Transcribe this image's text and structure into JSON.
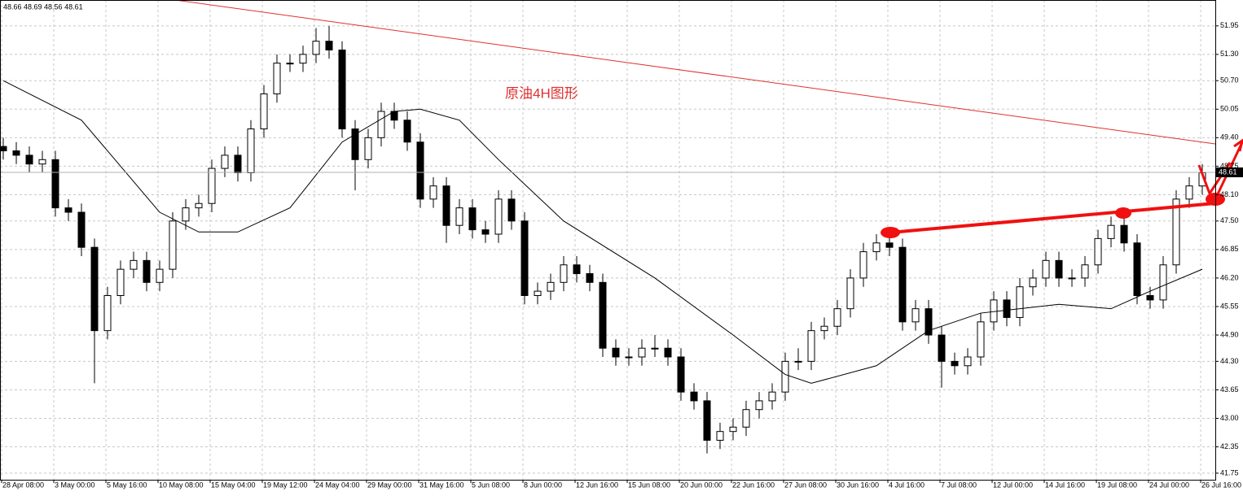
{
  "chart_data": {
    "type": "candlestick",
    "header": "48.66 48.69 48.56 48.61",
    "annotation": "原油4H图形",
    "current_price": 48.61,
    "ylim": [
      41.6,
      52.54
    ],
    "yticks": [
      41.75,
      42.35,
      {
        "value": 43,
        "label": "43.00"
      },
      43.65,
      {
        "value": 44.3,
        "label": "44.30"
      },
      {
        "value": 44.9,
        "label": "44.90"
      },
      45.55,
      {
        "value": 46.2,
        "label": "46.20"
      },
      46.85,
      {
        "value": 47.5,
        "label": "47.50"
      },
      {
        "value": 48.1,
        "label": "48.10"
      },
      48.75,
      {
        "value": 49.4,
        "label": "49.40"
      },
      50.05,
      {
        "value": 50.7,
        "label": "50.70"
      },
      {
        "value": 51.3,
        "label": "51.30"
      },
      51.95
    ],
    "grid": true,
    "categories": [
      "28 Apr 08:00",
      null,
      null,
      null,
      "3 May 00:00",
      null,
      null,
      null,
      "5 May 16:00",
      null,
      null,
      null,
      "10 May 08:00",
      null,
      null,
      null,
      "15 May 04:00",
      null,
      null,
      null,
      "19 May 12:00",
      null,
      null,
      null,
      "24 May 04:00",
      null,
      null,
      null,
      "29 May 00:00",
      null,
      null,
      null,
      "31 May 16:00",
      null,
      null,
      null,
      "5 Jun 08:00",
      null,
      null,
      null,
      "8 Jun 00:00",
      null,
      null,
      null,
      "12 Jun 16:00",
      null,
      null,
      null,
      "15 Jun 08:00",
      null,
      null,
      null,
      "20 Jun 00:00",
      null,
      null,
      null,
      "22 Jun 16:00",
      null,
      null,
      null,
      "27 Jun 08:00",
      null,
      null,
      null,
      "30 Jun 16:00",
      null,
      null,
      null,
      "4 Jul 16:00",
      null,
      null,
      null,
      "7 Jul 08:00",
      null,
      null,
      null,
      "12 Jul 00:00",
      null,
      null,
      null,
      "14 Jul 16:00",
      null,
      null,
      null,
      "19 Jul 08:00",
      null,
      null,
      null,
      "24 Jul 00:00",
      null,
      null,
      null,
      "26 Jul 16:00"
    ],
    "open": [
      49.2,
      49.1,
      49.0,
      48.8,
      48.9,
      47.8,
      47.7,
      46.9,
      45.0,
      45.8,
      46.4,
      46.6,
      46.1,
      46.4,
      47.5,
      47.8,
      47.9,
      48.7,
      49.0,
      48.6,
      49.6,
      50.4,
      51.1,
      51.1,
      51.3,
      51.6,
      51.4,
      49.6,
      48.9,
      49.4,
      50.0,
      49.8,
      49.3,
      48.0,
      48.3,
      47.4,
      47.8,
      47.3,
      47.2,
      48.0,
      47.5,
      45.8,
      45.9,
      46.1,
      46.5,
      46.3,
      46.1,
      44.6,
      44.4,
      44.4,
      44.6,
      44.6,
      44.4,
      43.6,
      43.4,
      42.5,
      42.7,
      42.8,
      43.2,
      43.4,
      43.6,
      44.3,
      44.3,
      45.0,
      45.1,
      45.5,
      46.2,
      46.8,
      47.0,
      46.9,
      45.2,
      45.5,
      44.9,
      44.3,
      44.2,
      44.4,
      45.2,
      45.7,
      45.3,
      46.0,
      46.2,
      46.6,
      46.2,
      46.2,
      46.5,
      47.1,
      47.4,
      47.0,
      45.8,
      45.7,
      46.5,
      48.0,
      48.3
    ],
    "high": [
      49.4,
      49.3,
      49.2,
      49.1,
      49.1,
      48.0,
      47.9,
      47.1,
      46.0,
      46.6,
      46.8,
      46.8,
      46.6,
      47.7,
      48.0,
      48.1,
      48.9,
      49.2,
      49.2,
      49.8,
      50.6,
      51.3,
      51.3,
      51.5,
      51.9,
      51.95,
      51.6,
      49.8,
      49.6,
      50.2,
      50.2,
      50.0,
      49.5,
      48.5,
      48.5,
      48.0,
      48.0,
      47.5,
      48.2,
      48.2,
      47.7,
      46.1,
      46.3,
      46.7,
      46.7,
      46.5,
      46.3,
      44.8,
      44.6,
      44.8,
      44.9,
      44.8,
      44.6,
      43.8,
      43.6,
      42.9,
      43.0,
      43.4,
      43.6,
      43.8,
      44.5,
      44.6,
      45.2,
      45.3,
      45.7,
      46.4,
      47.0,
      47.2,
      47.2,
      47.1,
      45.7,
      45.7,
      45.1,
      44.5,
      44.6,
      45.4,
      45.9,
      45.9,
      46.2,
      46.4,
      46.8,
      46.8,
      46.4,
      46.7,
      47.3,
      47.6,
      47.6,
      47.2,
      46.0,
      46.7,
      48.2,
      48.5,
      48.8
    ],
    "low": [
      48.9,
      48.8,
      48.6,
      48.6,
      47.6,
      47.5,
      46.7,
      43.8,
      44.8,
      45.6,
      46.2,
      45.9,
      45.9,
      46.2,
      47.3,
      47.6,
      47.7,
      48.5,
      48.4,
      48.4,
      49.4,
      50.2,
      50.9,
      50.9,
      51.1,
      51.2,
      49.4,
      48.2,
      48.7,
      49.2,
      49.6,
      49.1,
      47.8,
      47.8,
      47.0,
      47.2,
      47.1,
      47.0,
      47.0,
      47.3,
      45.6,
      45.6,
      45.7,
      45.9,
      46.1,
      45.9,
      44.4,
      44.2,
      44.2,
      44.2,
      44.4,
      44.2,
      43.4,
      43.2,
      42.2,
      42.3,
      42.5,
      42.6,
      43.0,
      43.2,
      43.4,
      44.1,
      44.1,
      44.8,
      44.9,
      45.3,
      46.0,
      46.6,
      46.7,
      45.0,
      45.0,
      44.7,
      43.7,
      44.0,
      44.0,
      44.2,
      45.0,
      45.1,
      45.1,
      45.8,
      46.0,
      46.0,
      46.0,
      46.0,
      46.3,
      46.9,
      46.8,
      45.6,
      45.5,
      45.5,
      46.3,
      47.8,
      48.1
    ],
    "close": [
      49.1,
      49.0,
      48.8,
      48.9,
      47.8,
      47.7,
      46.9,
      45.0,
      45.8,
      46.4,
      46.6,
      46.1,
      46.4,
      47.5,
      47.8,
      47.9,
      48.7,
      49.0,
      48.6,
      49.6,
      50.4,
      51.1,
      51.1,
      51.3,
      51.6,
      51.4,
      49.6,
      48.9,
      49.4,
      50.0,
      49.8,
      49.3,
      48.0,
      48.3,
      47.4,
      47.8,
      47.3,
      47.2,
      48.0,
      47.5,
      45.8,
      45.9,
      46.1,
      46.5,
      46.3,
      46.1,
      44.6,
      44.4,
      44.4,
      44.6,
      44.6,
      44.4,
      43.6,
      43.4,
      42.5,
      42.7,
      42.8,
      43.2,
      43.4,
      43.6,
      44.3,
      44.3,
      45.0,
      45.1,
      45.5,
      46.2,
      46.8,
      47.0,
      46.9,
      45.2,
      45.5,
      44.9,
      44.3,
      44.2,
      44.4,
      45.2,
      45.7,
      45.3,
      46.0,
      46.2,
      46.6,
      46.2,
      46.2,
      46.5,
      47.1,
      47.4,
      47.0,
      45.8,
      45.7,
      46.5,
      48.0,
      48.3,
      48.6
    ],
    "series": [
      {
        "color": "#000000",
        "x": [
          0,
          6,
          12,
          15,
          18,
          22,
          26,
          30,
          32,
          35,
          38,
          43,
          50,
          56,
          60,
          62,
          67,
          71,
          75,
          81,
          85,
          88,
          92
        ],
        "values": [
          50.7,
          49.8,
          47.7,
          47.25,
          47.25,
          47.8,
          49.3,
          50.0,
          50.05,
          49.8,
          48.9,
          47.5,
          46.2,
          44.9,
          44.0,
          43.8,
          44.2,
          45.0,
          45.4,
          45.6,
          45.5,
          45.9,
          46.4
        ]
      }
    ]
  }
}
